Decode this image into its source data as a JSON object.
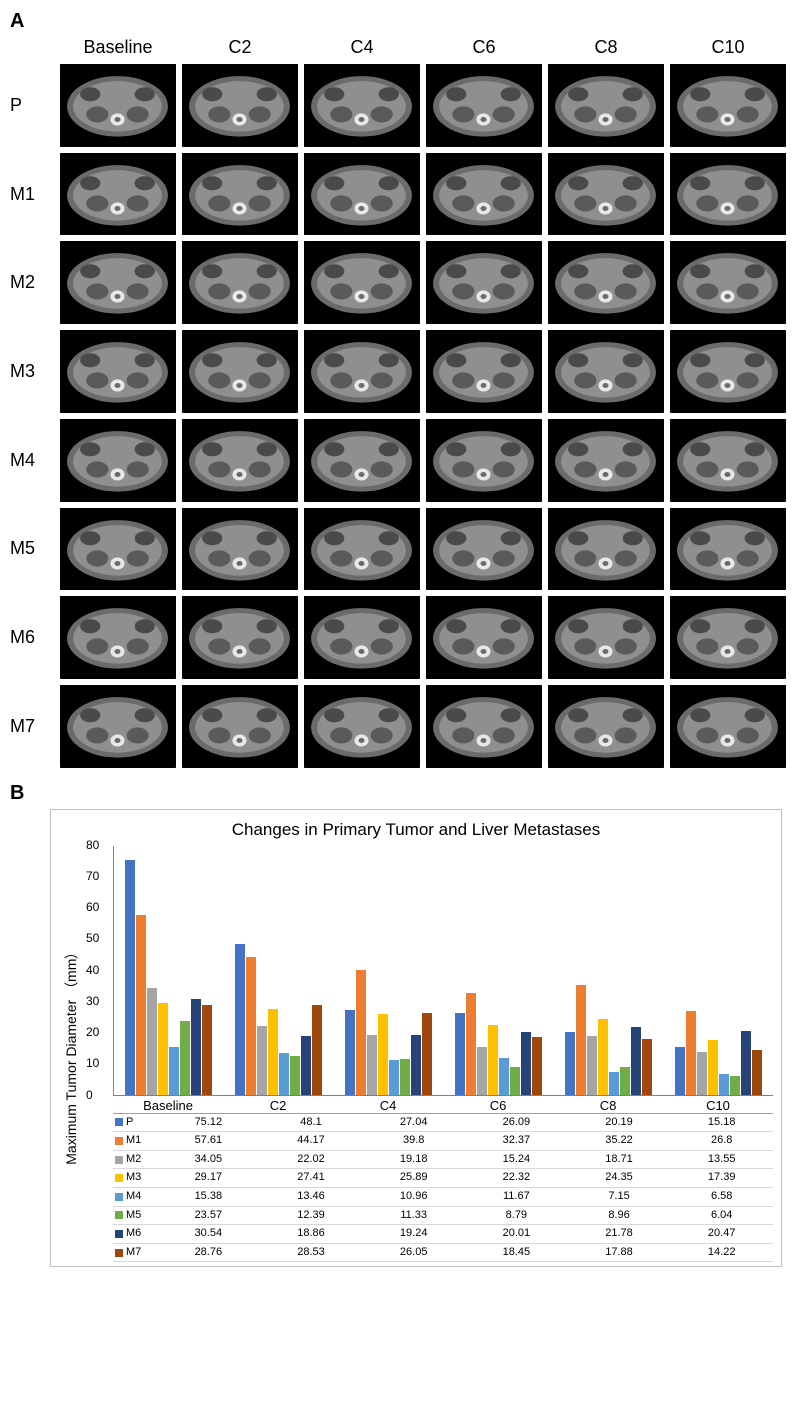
{
  "panelA": {
    "label": "A",
    "columns": [
      "Baseline",
      "C2",
      "C4",
      "C6",
      "C8",
      "C10"
    ],
    "rows": [
      "P",
      "M1",
      "M2",
      "M3",
      "M4",
      "M5",
      "M6",
      "M7"
    ]
  },
  "panelB": {
    "label": "B",
    "chart": {
      "type": "bar",
      "title": "Changes in Primary Tumor and Liver Metastases",
      "ylabel": "Maximum Tumor Diameter （mm）",
      "ylim": [
        0,
        80
      ],
      "yticks": [
        0,
        10,
        20,
        30,
        40,
        50,
        60,
        70,
        80
      ],
      "categories": [
        "Baseline",
        "C2",
        "C4",
        "C6",
        "C8",
        "C10"
      ],
      "title_fontsize": 17,
      "label_fontsize": 14,
      "tick_fontsize": 12,
      "background_color": "#ffffff",
      "axis_color": "#808080",
      "border_color": "#bfbfbf",
      "series": [
        {
          "id": "P",
          "label": "P",
          "color": "#4472c4",
          "values": [
            75.12,
            48.1,
            27.04,
            26.09,
            20.19,
            15.18
          ]
        },
        {
          "id": "M1",
          "label": "M1",
          "color": "#ed7d31",
          "values": [
            57.61,
            44.17,
            39.8,
            32.37,
            35.22,
            26.8
          ]
        },
        {
          "id": "M2",
          "label": "M2",
          "color": "#a5a5a5",
          "values": [
            34.05,
            22.02,
            19.18,
            15.24,
            18.71,
            13.55
          ]
        },
        {
          "id": "M3",
          "label": "M3",
          "color": "#ffc000",
          "values": [
            29.17,
            27.41,
            25.89,
            22.32,
            24.35,
            17.39
          ]
        },
        {
          "id": "M4",
          "label": "M4",
          "color": "#5b9bd5",
          "values": [
            15.38,
            13.46,
            10.96,
            11.67,
            7.15,
            6.58
          ]
        },
        {
          "id": "M5",
          "label": "M5",
          "color": "#70ad47",
          "values": [
            23.57,
            12.39,
            11.33,
            8.79,
            8.96,
            6.04
          ]
        },
        {
          "id": "M6",
          "label": "M6",
          "color": "#264478",
          "values": [
            30.54,
            18.86,
            19.24,
            20.01,
            21.78,
            20.47
          ]
        },
        {
          "id": "M7",
          "label": "M7",
          "color": "#9e480e",
          "values": [
            28.76,
            28.53,
            26.05,
            18.45,
            17.88,
            14.22
          ]
        }
      ]
    }
  }
}
